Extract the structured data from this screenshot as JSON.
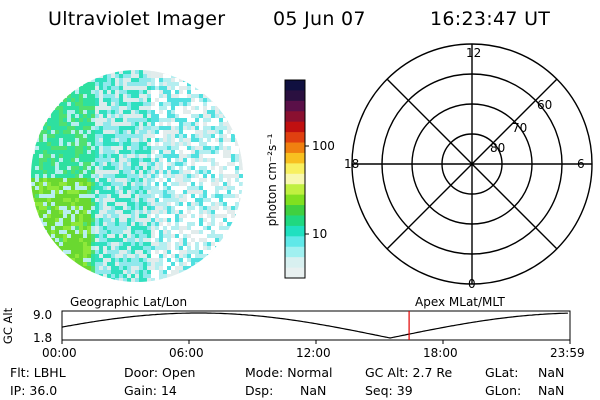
{
  "header": {
    "title": "Ultraviolet Imager",
    "date": "05 Jun 07",
    "time": "16:23:47 UT"
  },
  "colorbar": {
    "unit_label": "photon cm⁻²s⁻¹",
    "ticks": [
      "100",
      "10"
    ],
    "colors": [
      "#101040",
      "#2a1040",
      "#5a1048",
      "#8a1030",
      "#c01010",
      "#e04010",
      "#f08010",
      "#f8c020",
      "#f8f060",
      "#f8f8b0",
      "#c0f040",
      "#80e020",
      "#40d040",
      "#20d880",
      "#20e0c0",
      "#60e8e8",
      "#a0f0f0",
      "#d8f0f0",
      "#e8f0f0"
    ]
  },
  "polar_grid": {
    "mlt_labels": [
      "12",
      "18",
      "6",
      "0"
    ],
    "lat_labels": [
      "60",
      "70",
      "80"
    ]
  },
  "orbit_panel": {
    "left_label": "Geographic Lat/Lon",
    "right_label": "Apex MLat/MLT",
    "y_axis_label": "GC Alt",
    "y_ticks": [
      "9.0",
      "1.8"
    ],
    "x_ticks": [
      "00:00",
      "06:00",
      "12:00",
      "18:00",
      "23:59"
    ],
    "current_marker_hour": 16.4,
    "marker_color": "#e00000"
  },
  "info": {
    "row1": [
      {
        "label": "Flt:",
        "value": "LBHL"
      },
      {
        "label": "Door:",
        "value": "Open"
      },
      {
        "label": "Mode:",
        "value": "Normal"
      },
      {
        "label": "GC Alt:",
        "value": "2.7 Re"
      },
      {
        "label": "GLat:",
        "value": "NaN"
      }
    ],
    "row2": [
      {
        "label": "IP:",
        "value": "36.0"
      },
      {
        "label": "Gain:",
        "value": "14"
      },
      {
        "label": "Dsp:",
        "value": "NaN"
      },
      {
        "label": "Seq:",
        "value": "39"
      },
      {
        "label": "GLon:",
        "value": "NaN"
      }
    ]
  }
}
